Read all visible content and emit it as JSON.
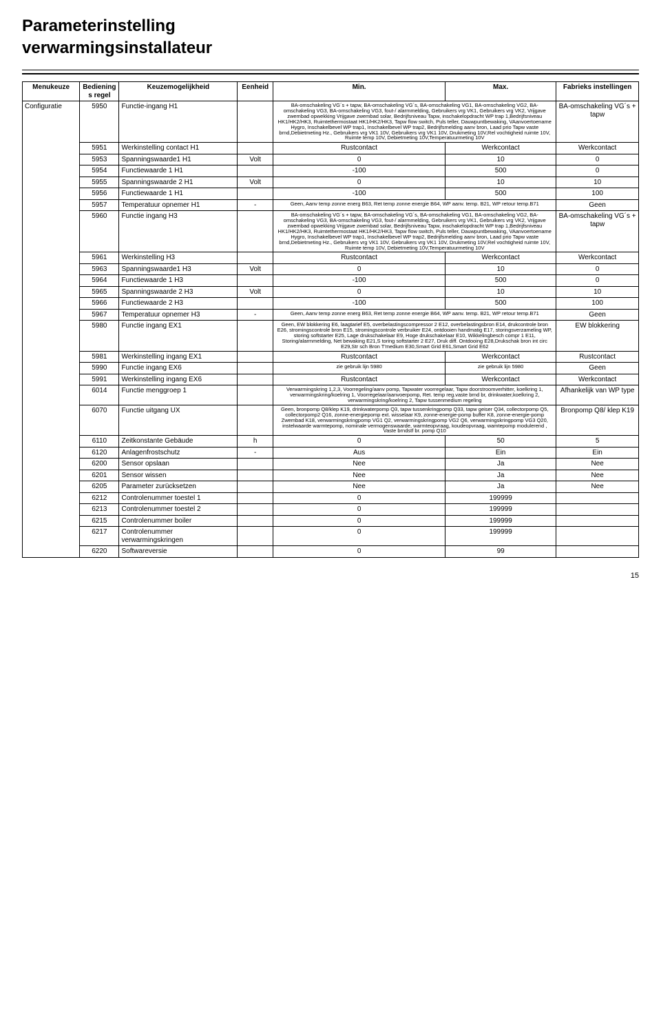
{
  "title_line1": "Parameterinstelling",
  "title_line2": "verwarmingsinstallateur",
  "headers": {
    "menu": "Menukeuze",
    "regel": "Bedienings regel",
    "keuze": "Keuzemogelijkheid",
    "eenheid": "Eenheid",
    "min": "Min.",
    "max": "Max.",
    "fabriek": "Fabrieks instellingen"
  },
  "menu_label": "Configuratie",
  "long_text_h1": "BA-omschakeling VG´s + tapw, BA-omschakeling VG´s, BA-omschakeling VG1, BA-omschakeling VG2, BA-omschakeling VG3, BA-omschakeling VG3, fout-/ alarmmelding, Gebruikers vrg VK1, Gebruikers vrg VK2, Vrijgave zwembad opwekking Vrijgave zwembad solar, Bedrijfsniveau Tapw, inschakelopdracht WP trap 1,Bedrijfsniveau HK1/HK2/HK3, Ruimtethermostaat HK1/HK2/HK3, Tapw flow switch, Puls teller, Dauwpuntbewaking, VAanvoertoename Hygro, Inschakelbevel WP trap1, Inschakelbevel WP trap2, Bedrijfsmelding aanv bron, Laad prio Tapw vaste brnd,Debietmeting Hz., Gebruikers vrg VK1 10V, Gebruikers vrg VK1 10V, Drukmeting 10V,Rel vochtigheid ruimte 10V, Ruimte temp 10V, Debietmeting 10V,Temperatuurmeting 10V",
  "temp_opnemer_text": "Geen, Aanv temp zonne energ B63, Ret temp zonne energie B64, WP aanv. temp. B21, WP retour temp.B71",
  "ex1_text": "Geen, EW blokkering E6, laagtarief E5, overbelastingscompressor 2 E12, overbelastingsbron E14, drukcontrole bron E26, stromingscontrole bron E15, stromingscontrole verbruiker E24, ontdooien handmatig E17, storingsverzameling WP, storing softstarter E25, Lage drukschakelaar E9, Hoge drukschakelaar E10, Wikkelingbesch compr 1 E11, Storing/alarmmelding, Net bewaking E21,S toring softstarter 2 E27, Druk diff. Ontdooing E28,Drukschak bron int circ E29,Str sch Bron T'medium E30,Smart Grid E61,Smart Grid E62",
  "menggroep_text": "Verwarmingskring 1,2,3, Voorregeling/aanv pomp, Tapwater voorregelaar, Tapw doorstroomverhitter, koelkring 1, verwarmingskring/koelring 1, Voorregelaar/aanvoerpomp, Ret. temp reg.vaste brnd br, drinkwater,koelkring 2, verwarmingskring/koelring 2, Tapw tussenmedium regeling",
  "ux_text": "Geen, bronpomp Q8/klep K19, drinkwaterpomp Q3, tapw tussenkringpomp Q33, tapw geiser Q34, collectorpomp Q5, collectorpomp2 Q16, zonne-energiepomp ext. wisselaar K9, zonne-energie-pomp buffer K8, zonne-energie-pomp Zwembad K18, verwarmingskringpomp VG1 Q2, verwarmingskringpomp VG2 Q6, verwarmingskringpomp VG3 Q20, instelwaarde warmtepomp, nominale vermogenswaarde, warmteopvraag, koudeopvraag, wamtepomp modulerend , Vaste brndstf br. pomp Q10",
  "rows": [
    {
      "r": "5950",
      "k": "Functie-ingang H1",
      "e": "",
      "min": "__LONG_H1__",
      "max": "",
      "f": "BA-omschakeling VG´s + tapw",
      "minsmall": true,
      "minspan": 2,
      "fcenter": true
    },
    {
      "r": "5951",
      "k": "Werkinstelling contact H1",
      "e": "",
      "min": "Rustcontact",
      "max": "Werkcontact",
      "f": "Werkcontact"
    },
    {
      "r": "5953",
      "k": "Spanningswaarde1 H1",
      "e": "Volt",
      "min": "0",
      "max": "10",
      "f": "0"
    },
    {
      "r": "5954",
      "k": "Functiewaarde 1 H1",
      "e": "",
      "min": "-100",
      "max": "500",
      "f": "0"
    },
    {
      "r": "5955",
      "k": "Spanningswaarde 2 H1",
      "e": "Volt",
      "min": "0",
      "max": "10",
      "f": "10"
    },
    {
      "r": "5956",
      "k": "Functiewaarde 1 H1",
      "e": "",
      "min": "-100",
      "max": "500",
      "f": "100"
    },
    {
      "r": "5957",
      "k": "Temperatuur opnemer H1",
      "e": "-",
      "min": "__TEMP_OPNEMER__",
      "max": "",
      "f": "Geen",
      "minsmall": true,
      "minspan": 2
    },
    {
      "r": "5960",
      "k": "Functie ingang H3",
      "e": "",
      "min": "__LONG_H1__",
      "max": "",
      "f": "BA-omschakeling VG´s + tapw",
      "minsmall": true,
      "minspan": 2,
      "fcenter": true
    },
    {
      "r": "5961",
      "k": "Werkinstelling H3",
      "e": "",
      "min": "Rustcontact",
      "max": "Werkcontact",
      "f": "Werkcontact"
    },
    {
      "r": "5963",
      "k": "Spanningswaarde1 H3",
      "e": "Volt",
      "min": "0",
      "max": "10",
      "f": "0"
    },
    {
      "r": "5964",
      "k": "Functiewaarde 1 H3",
      "e": "",
      "min": "-100",
      "max": "500",
      "f": "0"
    },
    {
      "r": "5965",
      "k": "Spanningswaarde 2 H3",
      "e": "Volt",
      "min": "0",
      "max": "10",
      "f": "10"
    },
    {
      "r": "5966",
      "k": "Functiewaarde 2 H3",
      "e": "",
      "min": "-100",
      "max": "500",
      "f": "100"
    },
    {
      "r": "5967",
      "k": "Temperatuur opnemer H3",
      "e": "-",
      "min": "__TEMP_OPNEMER__",
      "max": "",
      "f": "Geen",
      "minsmall": true,
      "minspan": 2
    },
    {
      "r": "5980",
      "k": "Functie ingang EX1",
      "e": "",
      "min": "__EX1__",
      "max": "",
      "f": "EW blokkering",
      "minsmall": true,
      "minspan": 2
    },
    {
      "r": "5981",
      "k": "Werkinstelling ingang EX1",
      "e": "",
      "min": "Rustcontact",
      "max": "Werkcontact",
      "f": "Rustcontact"
    },
    {
      "r": "5990",
      "k": "Functie ingang EX6",
      "e": "",
      "min": "zie gebruik lijn 5980",
      "max": "zie gebruik lijn 5980",
      "f": "Geen",
      "minsmall": true,
      "maxsmall": true
    },
    {
      "r": "5991",
      "k": "Werkinstelling ingang EX6",
      "e": "",
      "min": "Rustcontact",
      "max": "Werkcontact",
      "f": "Werkcontact"
    },
    {
      "r": "6014",
      "k": "Functie menggroep 1",
      "e": "",
      "min": "__MENGGROEP__",
      "max": "",
      "f": "Afhankelijk van WP type",
      "minsmall": true,
      "minspan": 2,
      "fcenter": true
    },
    {
      "r": "6070",
      "k": "Functie uitgang UX",
      "e": "",
      "min": "__UX__",
      "max": "",
      "f": "Bronpomp Q8/ klep K19",
      "minsmall": true,
      "minspan": 2,
      "fcenter": true
    },
    {
      "r": "6110",
      "k": "Zeitkonstante Gebäude",
      "e": "h",
      "min": "0",
      "max": "50",
      "f": "5"
    },
    {
      "r": "6120",
      "k": "Anlagenfrostschutz",
      "e": "-",
      "min": "Aus",
      "max": "Ein",
      "f": "Ein"
    },
    {
      "r": "6200",
      "k": "Sensor opslaan",
      "e": "",
      "min": "Nee",
      "max": "Ja",
      "f": "Nee"
    },
    {
      "r": "6201",
      "k": "Sensor wissen",
      "e": "",
      "min": "Nee",
      "max": "Ja",
      "f": "Nee"
    },
    {
      "r": "6205",
      "k": "Parameter zurücksetzen",
      "e": "",
      "min": "Nee",
      "max": "Ja",
      "f": "Nee"
    },
    {
      "r": "6212",
      "k": "Controlenummer toestel 1",
      "e": "",
      "min": "0",
      "max": "199999",
      "f": ""
    },
    {
      "r": "6213",
      "k": "Controlenummer toestel 2",
      "e": "",
      "min": "0",
      "max": "199999",
      "f": ""
    },
    {
      "r": "6215",
      "k": "Controlenummer boiler",
      "e": "",
      "min": "0",
      "max": "199999",
      "f": ""
    },
    {
      "r": "6217",
      "k": "Controlenummer verwarmingskringen",
      "e": "",
      "min": "0",
      "max": "199999",
      "f": ""
    },
    {
      "r": "6220",
      "k": "Softwareversie",
      "e": "",
      "min": "0",
      "max": "99",
      "f": ""
    }
  ],
  "page_number": "15"
}
